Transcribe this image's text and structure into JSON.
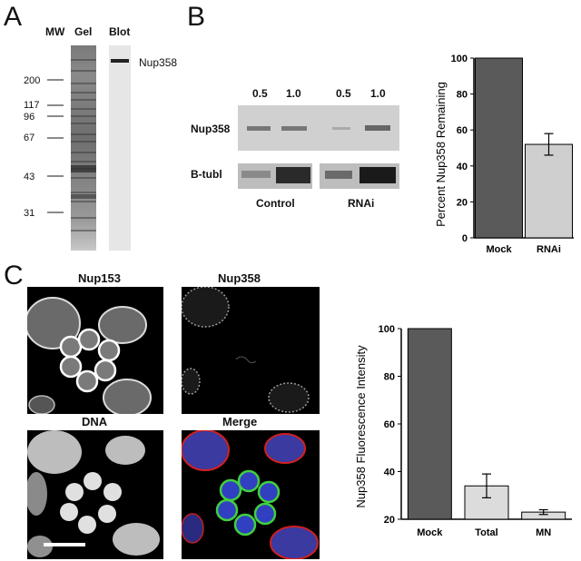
{
  "panels": {
    "a": {
      "letter": "A",
      "mw_label": "MW",
      "gel_label": "Gel",
      "blot_label": "Blot",
      "protein_label": "Nup358",
      "markers": [
        "200",
        "117",
        "96",
        "67",
        "43",
        "31"
      ]
    },
    "b": {
      "letter": "B",
      "lane_loads": [
        "0.5",
        "1.0",
        "0.5",
        "1.0"
      ],
      "row_labels": [
        "Nup358",
        "B-tubl"
      ],
      "group_labels": [
        "Control",
        "RNAi"
      ]
    },
    "c": {
      "letter": "C",
      "image_titles": [
        "Nup153",
        "Nup358",
        "DNA",
        "Merge"
      ]
    }
  },
  "chart_data": [
    {
      "type": "bar",
      "categories": [
        "Mock",
        "RNAi"
      ],
      "values": [
        100,
        52
      ],
      "errors": [
        0,
        6
      ],
      "ylabel": "Percent Nup358 Remaining",
      "xlabel": "",
      "title": "",
      "ylim": [
        0,
        100
      ],
      "yticks": [
        "0",
        "20",
        "40",
        "60",
        "80",
        "100"
      ],
      "bar_colors": [
        "#5a5a5a",
        "#cfcfcf"
      ]
    },
    {
      "type": "bar",
      "categories": [
        "Mock",
        "Total",
        "MN"
      ],
      "values": [
        100,
        34,
        23
      ],
      "errors": [
        0,
        5,
        1
      ],
      "ylabel": "Nup358 Fluorescence Intensity",
      "xlabel": "",
      "title": "",
      "ylim": [
        20,
        100
      ],
      "yticks": [
        "20",
        "40",
        "60",
        "80",
        "100"
      ],
      "bar_colors": [
        "#5a5a5a",
        "#dcdcdc",
        "#dcdcdc"
      ]
    }
  ]
}
